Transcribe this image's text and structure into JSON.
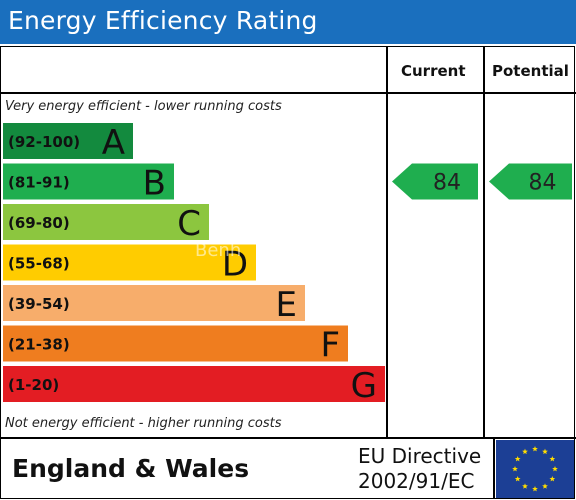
{
  "header": {
    "title": "Energy Efficiency Rating"
  },
  "columns": {
    "current": "Current",
    "potential": "Potential"
  },
  "notes": {
    "top": "Very energy efficient - lower running costs",
    "bottom": "Not energy efficient - higher running costs"
  },
  "footer": {
    "region": "England & Wales",
    "directive_line1": "EU Directive",
    "directive_line2": "2002/91/EC"
  },
  "watermark": "Benh",
  "chart_data": {
    "type": "bar",
    "title": "Energy Efficiency Rating",
    "categories": [
      "(92-100)",
      "(81-91)",
      "(69-80)",
      "(55-68)",
      "(39-54)",
      "(21-38)",
      "(1-20)"
    ],
    "bands": [
      {
        "range": "(92-100)",
        "letter": "A",
        "color": "#138a3e"
      },
      {
        "range": "(81-91)",
        "letter": "B",
        "color": "#1fae4f"
      },
      {
        "range": "(69-80)",
        "letter": "C",
        "color": "#8cc63f"
      },
      {
        "range": "(55-68)",
        "letter": "D",
        "color": "#ffcc00"
      },
      {
        "range": "(39-54)",
        "letter": "E",
        "color": "#f7ad6b"
      },
      {
        "range": "(21-38)",
        "letter": "F",
        "color": "#ef7d1f"
      },
      {
        "range": "(1-20)",
        "letter": "G",
        "color": "#e31d23"
      }
    ],
    "current": {
      "value": 84,
      "band": "B",
      "color": "#1fae4f"
    },
    "potential": {
      "value": 84,
      "band": "B",
      "color": "#1fae4f"
    }
  }
}
